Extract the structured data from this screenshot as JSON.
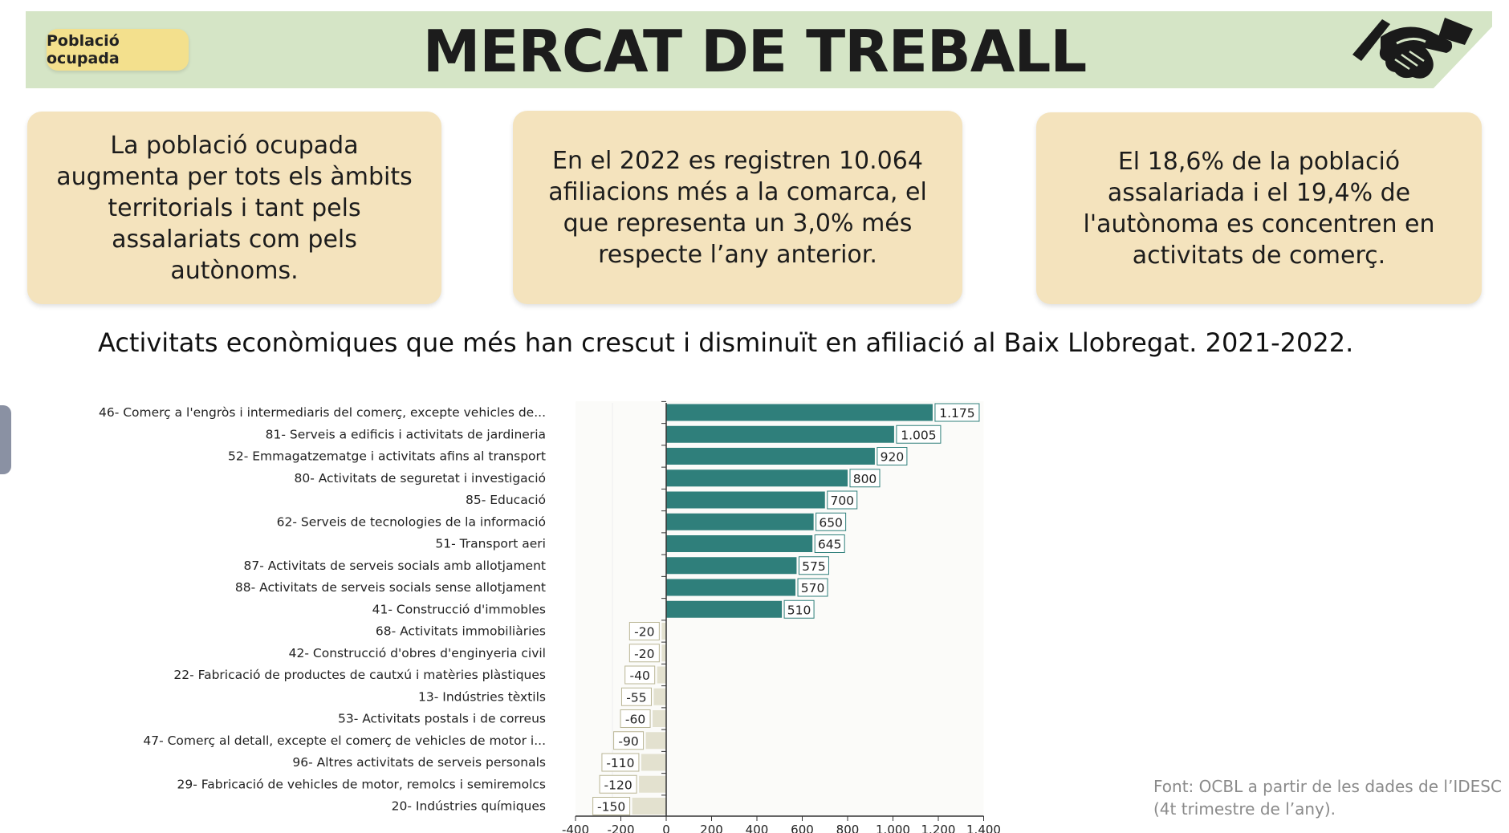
{
  "header": {
    "badge": "Població ocupada",
    "title": "MERCAT DE TREBALL",
    "icon": "handshake-icon"
  },
  "cards": [
    {
      "text": "La població ocupada augmenta per tots els àmbits territorials i tant pels assalariats com pels autònoms."
    },
    {
      "text": "En el 2022 es registren 10.064 afiliacions més a la comarca, el que representa un 3,0% més respecte l’any anterior."
    },
    {
      "text": "El 18,6% de la població assalariada i el 19,4% de l'autònoma es concentren en activitats de comerç."
    }
  ],
  "chart_title": "Activitats econòmiques que més han crescut i disminuït en afiliació al Baix Llobregat. 2021-2022.",
  "source": "Font: OCBL a partir de les dades de l’IDESC\n(4t trimestre de l’any).",
  "colors": {
    "positive": "#2f7f7b",
    "negative": "#e3e1cf",
    "header": "#d5e5c6",
    "card": "#f4e3bd",
    "badge": "#f3e08d"
  },
  "chart_data": {
    "type": "bar",
    "orientation": "horizontal",
    "categories": [
      "46- Comerç a l'engròs i intermediaris del comerç, excepte vehicles de...",
      "81- Serveis a edificis i activitats de jardineria",
      "52- Emmagatzematge i activitats afins al transport",
      "80- Activitats de seguretat i investigació",
      "85- Educació",
      "62- Serveis de tecnologies de la informació",
      "51- Transport aeri",
      "87- Activitats de serveis socials amb allotjament",
      "88- Activitats de serveis socials sense allotjament",
      "41- Construcció d'immobles",
      "68- Activitats immobiliàries",
      "42- Construcció d'obres d'enginyeria civil",
      "22- Fabricació de productes de cautxú i matèries plàstiques",
      "13- Indústries tèxtils",
      "53- Activitats postals i de correus",
      "47- Comerç al detall, excepte el comerç de vehicles de motor i...",
      "96- Altres activitats de serveis personals",
      "29- Fabricació de vehicles de motor, remolcs i semiremolcs",
      "20- Indústries químiques"
    ],
    "values": [
      1175,
      1005,
      920,
      800,
      700,
      650,
      645,
      575,
      570,
      510,
      -20,
      -20,
      -40,
      -55,
      -60,
      -90,
      -110,
      -120,
      -150
    ],
    "labels": [
      "1.175",
      "1.005",
      "920",
      "800",
      "700",
      "650",
      "645",
      "575",
      "570",
      "510",
      "-20",
      "-20",
      "-40",
      "-55",
      "-60",
      "-90",
      "-110",
      "-120",
      "-150"
    ],
    "xlim": [
      -400,
      1400
    ],
    "xticks": [
      "-400",
      "-200",
      "0",
      "200",
      "400",
      "600",
      "800",
      "1.000",
      "1.200",
      "1.400"
    ],
    "xtick_values": [
      -400,
      -200,
      0,
      200,
      400,
      600,
      800,
      1000,
      1200,
      1400
    ],
    "grid": false,
    "legend": "none"
  }
}
